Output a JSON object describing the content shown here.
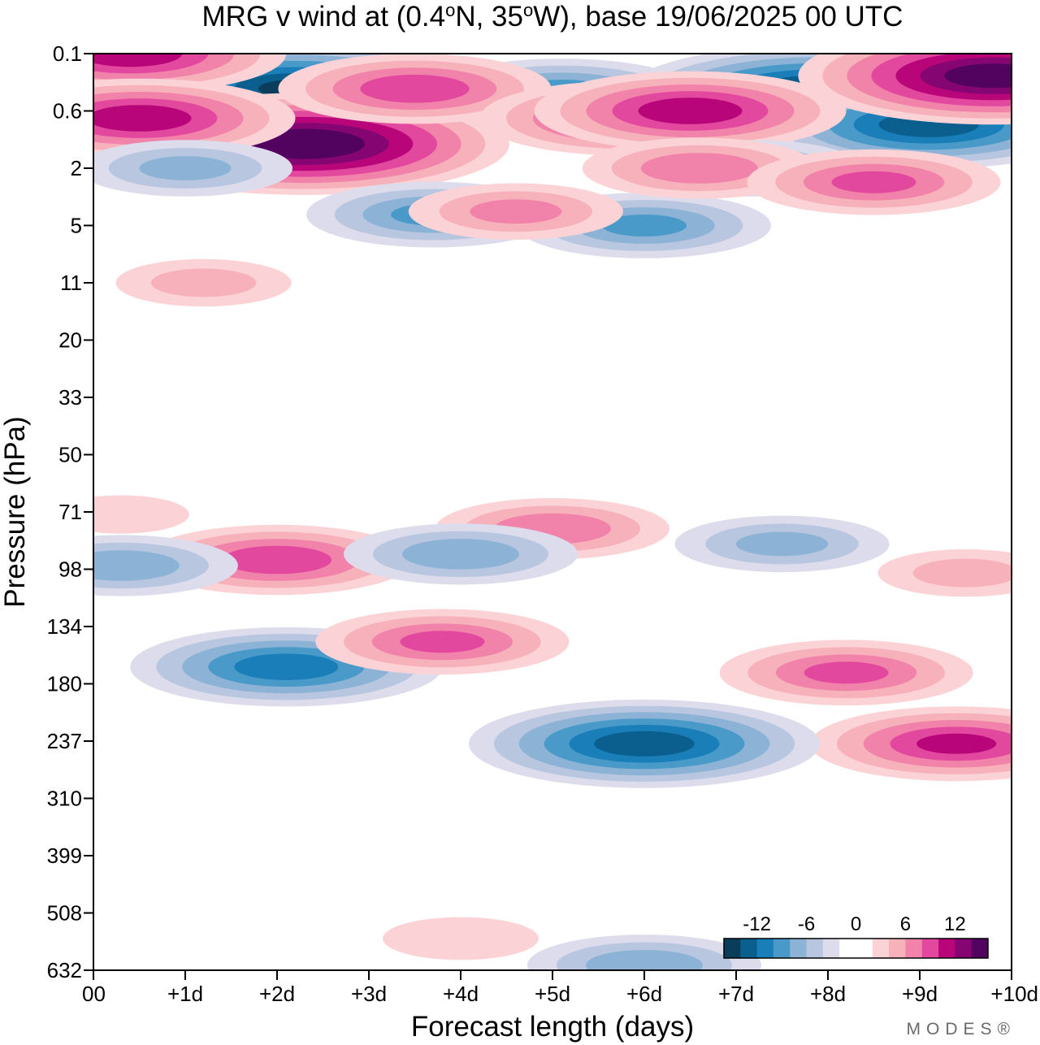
{
  "chart_data": {
    "type": "heatmap",
    "title": "MRG v wind at (0.4°N, 35°W),  base 19/06/2025  00 UTC",
    "title_parts": {
      "a": "MRG v wind at (0.4",
      "deg1": "o",
      "b": "N, 35",
      "deg2": "o",
      "c": "W),  base 19/06/2025  00 UTC"
    },
    "xlabel": "Forecast length (days)",
    "ylabel": "Pressure (hPa)",
    "x_ticks": [
      "00",
      "+1d",
      "+2d",
      "+3d",
      "+4d",
      "+5d",
      "+6d",
      "+7d",
      "+8d",
      "+9d",
      "+10d"
    ],
    "y_ticks": [
      "0.1",
      "0.6",
      "2",
      "5",
      "11",
      "20",
      "33",
      "50",
      "71",
      "98",
      "134",
      "180",
      "237",
      "310",
      "399",
      "508",
      "632"
    ],
    "xlim": [
      0,
      10
    ],
    "ylim": [
      0.1,
      632
    ],
    "colorbar": {
      "tick_labels": [
        "-12",
        "-6",
        "0",
        "6",
        "12"
      ],
      "colors": [
        "#0a3d5c",
        "#0b5f8e",
        "#1a7fb8",
        "#4a9ac9",
        "#8cb3d6",
        "#b8c6e0",
        "#dcdcec",
        "#ffffff",
        "#ffffff",
        "#fbd3d6",
        "#f7b1bb",
        "#f183aa",
        "#e3489f",
        "#b8067a",
        "#850672",
        "#52025f"
      ]
    },
    "features": [
      {
        "x": 1.2,
        "y": 0.35,
        "v": -15
      },
      {
        "x": 2.2,
        "y": 0.3,
        "v": -14
      },
      {
        "x": 5.1,
        "y": 0.35,
        "v": -9
      },
      {
        "x": 7.9,
        "y": 0.35,
        "v": -15
      },
      {
        "x": 9.1,
        "y": 0.8,
        "v": -13
      },
      {
        "x": 9.8,
        "y": 0.2,
        "v": 15
      },
      {
        "x": 0.4,
        "y": 0.1,
        "v": 11
      },
      {
        "x": 2.3,
        "y": 1.2,
        "v": 16
      },
      {
        "x": 0.5,
        "y": 0.7,
        "v": 11
      },
      {
        "x": 3.5,
        "y": 0.3,
        "v": 9
      },
      {
        "x": 5.8,
        "y": 0.7,
        "v": 10
      },
      {
        "x": 6.5,
        "y": 0.6,
        "v": 11
      },
      {
        "x": 1.0,
        "y": 2,
        "v": -6
      },
      {
        "x": 3.7,
        "y": 4.2,
        "v": -8
      },
      {
        "x": 6.0,
        "y": 5,
        "v": -8
      },
      {
        "x": 7.2,
        "y": 2,
        "v": -6
      },
      {
        "x": 6.6,
        "y": 2,
        "v": 7
      },
      {
        "x": 8.5,
        "y": 2.5,
        "v": 8
      },
      {
        "x": 4.6,
        "y": 4,
        "v": 6
      },
      {
        "x": 1.2,
        "y": 11,
        "v": 4
      },
      {
        "x": 0.3,
        "y": 72,
        "v": 2
      },
      {
        "x": 5.0,
        "y": 78,
        "v": 7
      },
      {
        "x": 2.0,
        "y": 93,
        "v": 9
      },
      {
        "x": 4.0,
        "y": 90,
        "v": -7
      },
      {
        "x": 7.5,
        "y": 85,
        "v": -6
      },
      {
        "x": 9.5,
        "y": 100,
        "v": 4
      },
      {
        "x": 0.3,
        "y": 96,
        "v": -7
      },
      {
        "x": 2.1,
        "y": 165,
        "v": -11
      },
      {
        "x": 3.8,
        "y": 145,
        "v": 8
      },
      {
        "x": 8.2,
        "y": 170,
        "v": 8
      },
      {
        "x": 9.4,
        "y": 240,
        "v": 10
      },
      {
        "x": 6.0,
        "y": 240,
        "v": -13
      },
      {
        "x": 4.0,
        "y": 560,
        "v": 3
      },
      {
        "x": 6.0,
        "y": 620,
        "v": -7
      }
    ]
  },
  "brand": "MODES®"
}
